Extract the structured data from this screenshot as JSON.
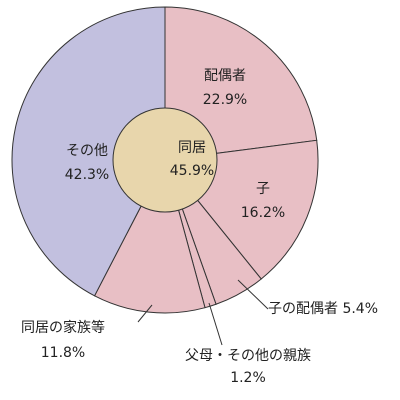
{
  "chart_data": {
    "type": "pie",
    "start_angle_deg": 0,
    "direction": "clockwise",
    "slices": [
      {
        "label": "配偶者",
        "value": 22.9,
        "value_text": "22.9%",
        "color": "#e8bfc5"
      },
      {
        "label": "子",
        "value": 16.2,
        "value_text": "16.2%",
        "color": "#e8bfc5"
      },
      {
        "label": "子の配偶者",
        "value": 5.4,
        "value_text": "5.4%",
        "color": "#e8bfc5"
      },
      {
        "label": "父母・その他の親族",
        "value": 1.2,
        "value_text": "1.2%",
        "color": "#e8bfc5"
      },
      {
        "label": "同居の家族等",
        "value": 11.8,
        "value_text": "11.8%",
        "color": "#e8bfc5"
      },
      {
        "label": "その他",
        "value": 42.3,
        "value_text": "42.3%",
        "color": "#c2c0df"
      }
    ],
    "inner": {
      "label": "同居",
      "value": 45.9,
      "value_text": "45.9%",
      "color": "#e8d6ac"
    },
    "stroke_color": "#333333"
  }
}
